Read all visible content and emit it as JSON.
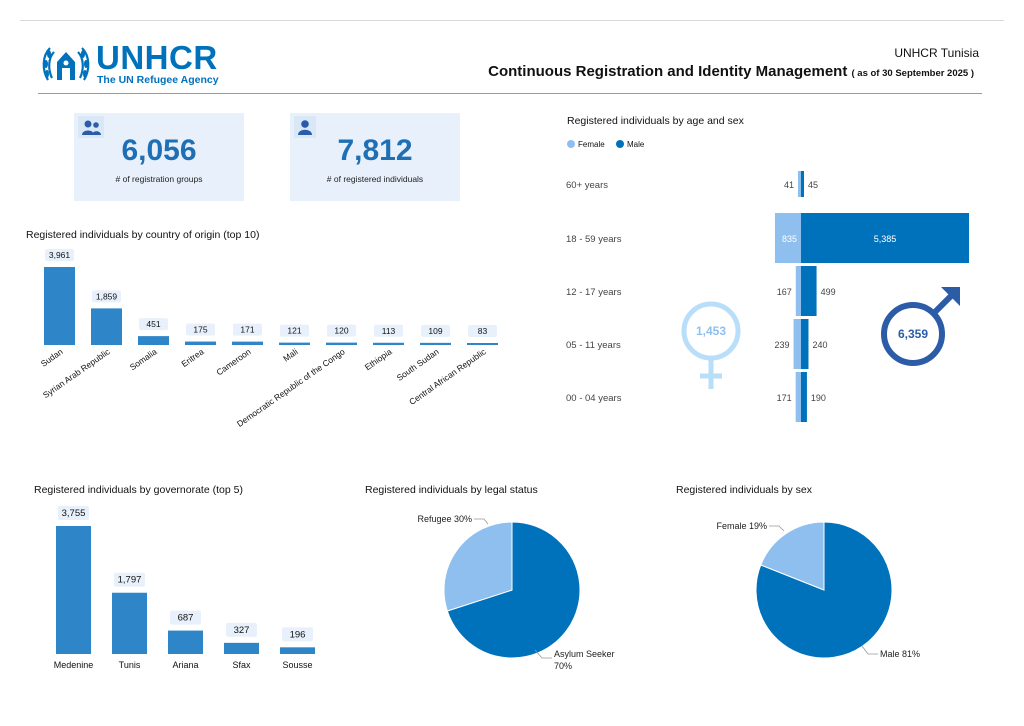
{
  "header": {
    "logo_word": "UNHCR",
    "logo_sub": "The UN Refugee Agency",
    "office": "UNHCR Tunisia",
    "title": "Continuous Registration and Identity Management",
    "as_of": "( as of 30 September 2025 )"
  },
  "kpis": [
    {
      "value": "6,056",
      "label": "# of registration groups",
      "icon": "group-icon"
    },
    {
      "value": "7,812",
      "label": "# of registered individuals",
      "icon": "person-icon"
    }
  ],
  "colors": {
    "male": "#0072bc",
    "female": "#8ebfee",
    "bar": "#2e86c9",
    "kpi_bg": "#e8f1fb",
    "male_symbol": "#2c5ba8",
    "female_symbol": "#b9defa"
  },
  "chart_data": [
    {
      "type": "bar",
      "title": "Registered individuals by country of origin (top 10)",
      "categories": [
        "Sudan",
        "Syrian Arab Republic",
        "Somalia",
        "Eritrea",
        "Cameroon",
        "Mali",
        "Democratic Republic of the Congo",
        "Ethiopia",
        "South Sudan",
        "Central African Republic"
      ],
      "values": [
        3961,
        1859,
        451,
        175,
        171,
        121,
        120,
        113,
        109,
        83
      ],
      "labels": [
        "3,961",
        "1,859",
        "451",
        "175",
        "171",
        "121",
        "120",
        "113",
        "109",
        "83"
      ]
    },
    {
      "type": "bar",
      "orientation": "horizontal-pyramid",
      "title": "Registered individuals by age and sex",
      "categories": [
        "60+ years",
        "18 - 59 years",
        "12 - 17 years",
        "05 - 11 years",
        "00 - 04 years"
      ],
      "series": [
        {
          "name": "Female",
          "values": [
            41,
            835,
            167,
            239,
            171
          ]
        },
        {
          "name": "Male",
          "values": [
            45,
            5385,
            499,
            240,
            190
          ]
        }
      ],
      "male_labels": [
        "45",
        "5,385",
        "499",
        "240",
        "190"
      ],
      "female_labels": [
        "41",
        "835",
        "167",
        "239",
        "171"
      ],
      "legend": "top-left",
      "female_total": "1,453",
      "male_total": "6,359"
    },
    {
      "type": "bar",
      "title": "Registered individuals by governorate (top 5)",
      "categories": [
        "Medenine",
        "Tunis",
        "Ariana",
        "Sfax",
        "Sousse"
      ],
      "values": [
        3755,
        1797,
        687,
        327,
        196
      ],
      "labels": [
        "3,755",
        "1,797",
        "687",
        "327",
        "196"
      ]
    },
    {
      "type": "pie",
      "title": "Registered individuals by legal status",
      "categories": [
        "Asylum Seeker",
        "Refugee"
      ],
      "values": [
        70,
        30
      ],
      "labels": [
        "Asylum Seeker 70%",
        "Refugee 30%"
      ]
    },
    {
      "type": "pie",
      "title": "Registered individuals by sex",
      "categories": [
        "Male",
        "Female"
      ],
      "values": [
        81,
        19
      ],
      "labels": [
        "Male 81%",
        "Female 19%"
      ]
    }
  ]
}
